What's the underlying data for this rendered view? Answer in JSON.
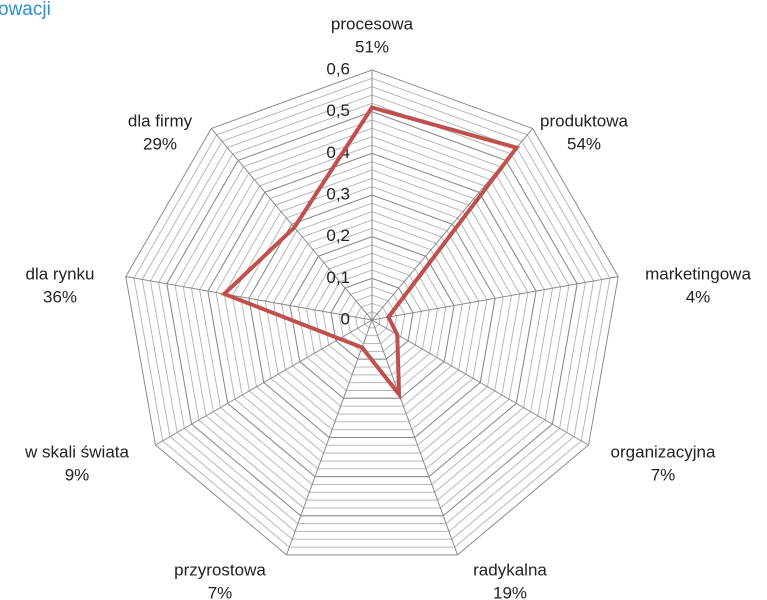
{
  "chart_data": {
    "type": "radar",
    "title": "owacji",
    "categories": [
      "procesowa",
      "produktowa",
      "marketingowa",
      "organizacyjna",
      "radykalna",
      "przyrostowa",
      "w skali świata",
      "dla rynku",
      "dla firmy"
    ],
    "values": [
      0.51,
      0.54,
      0.04,
      0.07,
      0.19,
      0.07,
      0.09,
      0.36,
      0.29
    ],
    "value_labels": [
      "51%",
      "54%",
      "4%",
      "7%",
      "19%",
      "7%",
      "9%",
      "36%",
      "29%"
    ],
    "color": "#c0504d",
    "ylim": [
      0,
      0.6
    ],
    "yticks": [
      0,
      {
        "value": 0.1,
        "label": "0,1"
      },
      {
        "value": 0.2,
        "label": "0,2"
      },
      {
        "value": 0.3,
        "label": "0,3"
      },
      {
        "value": 0.4,
        "label": "0,4"
      },
      {
        "value": 0.5,
        "label": "0,5"
      },
      {
        "value": 0.6,
        "label": "0,6"
      }
    ],
    "grid": true
  }
}
